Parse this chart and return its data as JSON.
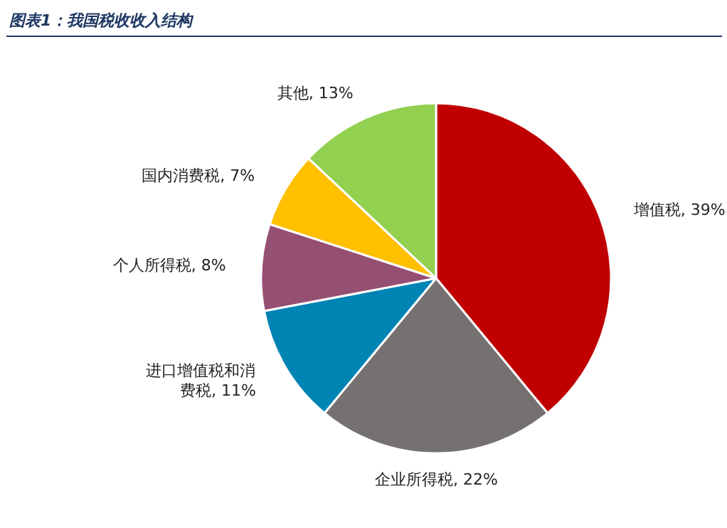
{
  "chart_data": {
    "type": "pie",
    "title": "图表1：我国税收收入结构",
    "categories": [
      "增值税",
      "企业所得税",
      "进口增值税和消费税",
      "个人所得税",
      "国内消费税",
      "其他"
    ],
    "values": [
      39,
      22,
      11,
      8,
      7,
      13
    ],
    "colors": [
      "#c00000",
      "#767171",
      "#0084b4",
      "#954f72",
      "#ffc000",
      "#92d050"
    ],
    "value_labels": [
      ", 39%",
      ", 22%",
      ", 11%",
      ", 8%",
      ", 7%",
      ", 13%"
    ]
  }
}
